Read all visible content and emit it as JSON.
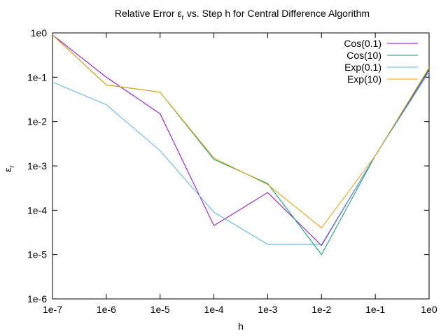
{
  "chart_data": {
    "type": "line",
    "title": {
      "prefix": "Relative Error ε",
      "subscript": "r",
      "suffix": " vs. Step h for Central Difference Algorithm"
    },
    "xlabel": "h",
    "ylabel": {
      "main": "ε",
      "subscript": "r"
    },
    "x_scale": "log",
    "y_scale": "log",
    "xlim": [
      1e-07,
      1
    ],
    "ylim": [
      1e-06,
      1
    ],
    "x_ticks": [
      {
        "value": 1e-07,
        "label": "1e-7"
      },
      {
        "value": 1e-06,
        "label": "1e-6"
      },
      {
        "value": 1e-05,
        "label": "1e-5"
      },
      {
        "value": 0.0001,
        "label": "1e-4"
      },
      {
        "value": 0.001,
        "label": "1e-3"
      },
      {
        "value": 0.01,
        "label": "1e-2"
      },
      {
        "value": 0.1,
        "label": "1e-1"
      },
      {
        "value": 1,
        "label": "1e0"
      }
    ],
    "y_ticks": [
      {
        "value": 1e-06,
        "label": "1e-6"
      },
      {
        "value": 1e-05,
        "label": "1e-5"
      },
      {
        "value": 0.0001,
        "label": "1e-4"
      },
      {
        "value": 0.001,
        "label": "1e-3"
      },
      {
        "value": 0.01,
        "label": "1e-2"
      },
      {
        "value": 0.1,
        "label": "1e-1"
      },
      {
        "value": 1,
        "label": "1e0"
      }
    ],
    "grid": false,
    "legend": {
      "position": "top-right"
    },
    "x": [
      1e-07,
      1e-06,
      1e-05,
      0.0001,
      0.001,
      0.01,
      0.1,
      1
    ],
    "series": [
      {
        "name": "Cos(0.1)",
        "color": "#9400d3",
        "values": [
          0.9,
          0.1,
          0.015,
          4.5e-05,
          0.00025,
          1.6e-05,
          0.0017,
          0.145
        ]
      },
      {
        "name": "Cos(10)",
        "color": "#009e73",
        "values": [
          0.9,
          0.067,
          0.046,
          0.0014,
          0.0004,
          1e-05,
          0.0017,
          0.155
        ]
      },
      {
        "name": "Exp(0.1)",
        "color": "#56b4e9",
        "values": [
          0.078,
          0.024,
          0.0022,
          9e-05,
          1.7e-05,
          1.7e-05,
          0.0017,
          0.13
        ]
      },
      {
        "name": "Exp(10)",
        "color": "#e69f00",
        "values": [
          0.9,
          0.067,
          0.046,
          0.0015,
          0.00038,
          4e-05,
          0.0017,
          0.165
        ]
      }
    ]
  }
}
